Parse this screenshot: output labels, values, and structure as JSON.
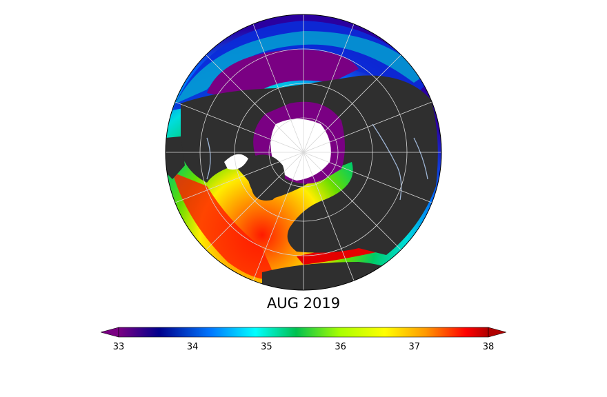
{
  "map": {
    "title": "AUG 2019",
    "colors": {
      "land": "#2f2f2f",
      "ice": "#ffffff",
      "rivers": "#9fb6d6",
      "graticule": "#d8d8d8"
    }
  },
  "colorbar": {
    "min": 33,
    "max": 38,
    "extend": "both",
    "ticks": [
      "33",
      "34",
      "35",
      "36",
      "37",
      "38"
    ],
    "stops": [
      "#7a0083",
      "#00008c",
      "#0078ff",
      "#00ffff",
      "#00c050",
      "#aaff00",
      "#ffff00",
      "#ff9900",
      "#ff0000",
      "#b00000"
    ]
  }
}
